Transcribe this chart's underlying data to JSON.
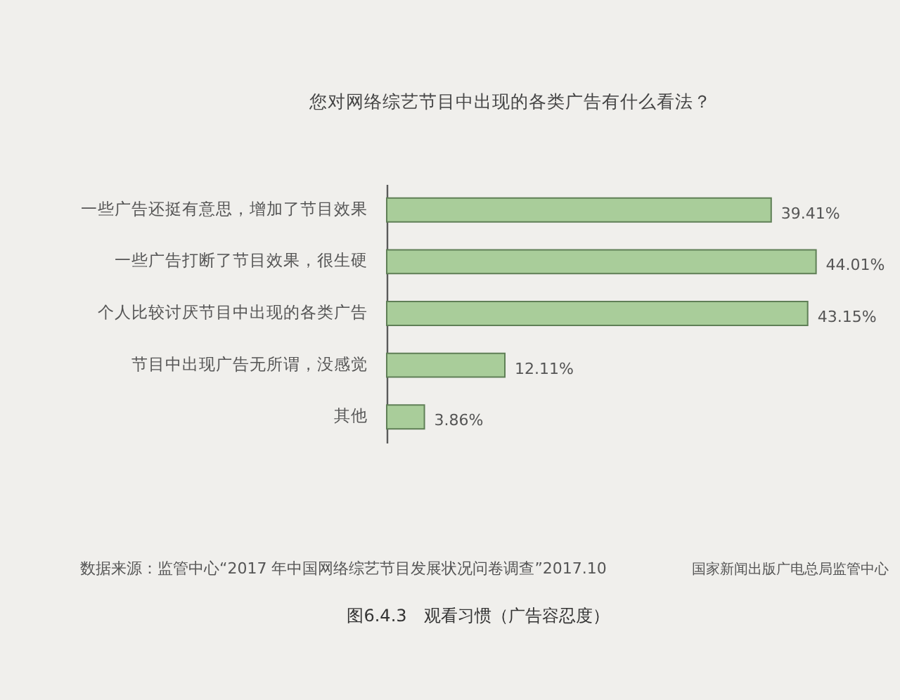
{
  "chart_data": {
    "type": "bar",
    "orientation": "horizontal",
    "title": "您对网络综艺节目中出现的各类广告有什么看法？",
    "categories": [
      "一些广告还挺有意思，增加了节目效果",
      "一些广告打断了节目效果，很生硬",
      "个人比较讨厌节目中出现的各类广告",
      "节目中出现广告无所谓，没感觉",
      "其他"
    ],
    "values": [
      39.41,
      44.01,
      43.15,
      12.11,
      3.86
    ],
    "value_labels": [
      "39.41%",
      "44.01%",
      "43.15%",
      "12.11%",
      "3.86%"
    ],
    "color": "#a9cd9a",
    "annotations": [
      "数据来源：监管中心“2017 年中国网络综艺节目发展状况问卷调查”2017.10",
      "国家新闻出版广电总局监管中心",
      "图6.4.3　观看习惯（广告容忍度）"
    ]
  }
}
